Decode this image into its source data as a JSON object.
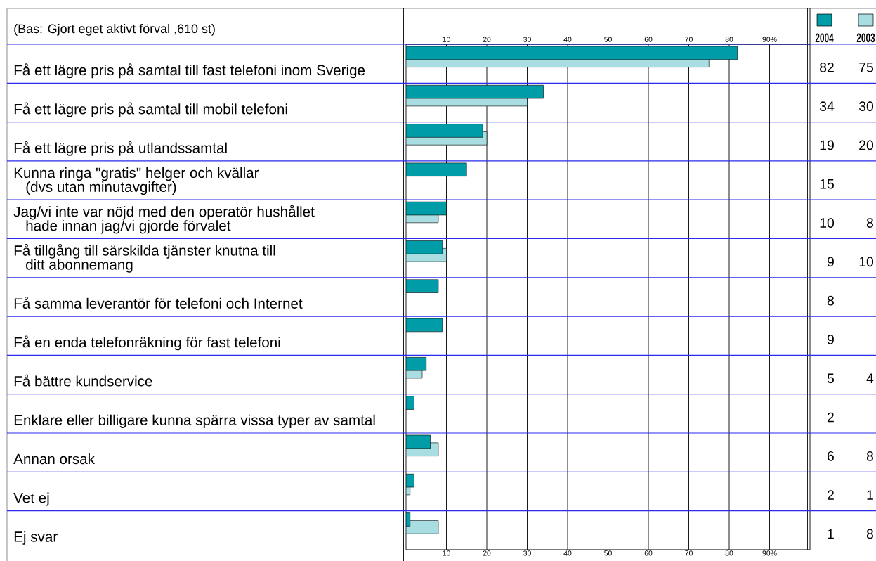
{
  "chart_data": {
    "type": "bar",
    "orientation": "horizontal",
    "subtitle": "(Bas: Gjort eget aktivt förval ,610 st)",
    "categories": [
      "Få ett lägre pris på samtal till fast telefoni inom Sverige",
      "Få ett lägre pris på samtal till mobil telefoni",
      "Få ett lägre pris på utlandssamtal",
      "Kunna ringa \"gratis\" helger och kvällar (dvs utan minutavgifter)",
      "Jag/vi inte var nöjd med den operatör hushållet hade innan jag/vi gjorde förvalet",
      "Få tillgång till särskilda tjänster knutna till ditt abonnemang",
      "Få samma leverantör för telefoni och Internet",
      "Få en enda telefonräkning för fast telefoni",
      "Få bättre kundservice",
      "Enklare eller billigare kunna spärra vissa typer av samtal",
      "Annan orsak",
      "Vet ej",
      "Ej svar"
    ],
    "series": [
      {
        "name": "2004",
        "color": "#009ca8",
        "values": [
          82,
          34,
          19,
          15,
          10,
          9,
          8,
          9,
          5,
          2,
          6,
          2,
          1
        ]
      },
      {
        "name": "2003",
        "color": "#a8dde1",
        "values": [
          75,
          30,
          20,
          null,
          8,
          10,
          null,
          null,
          4,
          null,
          8,
          1,
          8
        ]
      }
    ],
    "xlim": [
      0,
      100
    ],
    "xticks": [
      10,
      20,
      30,
      40,
      50,
      60,
      70,
      80,
      {
        "value": 90,
        "label": "90%"
      }
    ],
    "x2lim": [
      0,
      100
    ],
    "x2ticks": [
      10,
      20,
      30,
      40,
      50,
      60,
      70,
      80,
      {
        "value": 90,
        "label": "90%"
      }
    ],
    "grid": "x",
    "legend": "top right",
    "data_labels": true
  }
}
